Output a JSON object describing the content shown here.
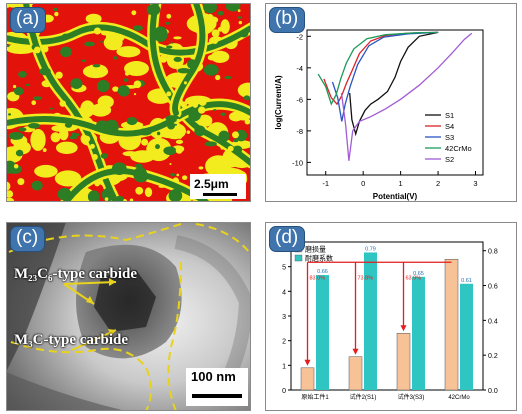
{
  "panels": {
    "a": {
      "label": "(a)",
      "scale_bar": "2.5μm"
    },
    "b": {
      "label": "(b)"
    },
    "c": {
      "label": "(c)",
      "scale_bar": "100 nm",
      "carbide_1": "M₂₃C₆-type carbide",
      "carbide_2": "M₃C-type carbide"
    },
    "d": {
      "label": "(d)"
    }
  },
  "colors": {
    "red": "#e3120b",
    "green": "#2d7d25",
    "yellow": "#f2ec1e",
    "tag_bg": "#3f74ad",
    "teal": "#2ec5c2",
    "peach": "#f6c296",
    "arrow": "#e31c1c"
  },
  "chart_data": [
    {
      "panel": "b",
      "type": "line",
      "xlabel": "Potential(V)",
      "ylabel": "log(Current/A)",
      "xlim": [
        -1.5,
        3.2
      ],
      "ylim": [
        -10.8,
        -1.6
      ],
      "xticks": [
        -1,
        0,
        1,
        2,
        3
      ],
      "yticks": [
        -2,
        -4,
        -6,
        -8,
        -10
      ],
      "legend_position": "right",
      "series": [
        {
          "name": "S1",
          "color": "#111111",
          "points": [
            [
              -0.36,
              -5.6
            ],
            [
              -0.3,
              -7.3
            ],
            [
              -0.2,
              -8.2
            ],
            [
              -0.1,
              -7.4
            ],
            [
              0.05,
              -6.7
            ],
            [
              0.2,
              -6.3
            ],
            [
              0.4,
              -6.0
            ],
            [
              0.65,
              -5.5
            ],
            [
              0.85,
              -4.6
            ],
            [
              1.0,
              -3.6
            ],
            [
              1.2,
              -2.7
            ],
            [
              1.5,
              -2.0
            ],
            [
              2.0,
              -1.75
            ]
          ]
        },
        {
          "name": "S4",
          "color": "#d9222a",
          "points": [
            [
              -1.05,
              -4.7
            ],
            [
              -0.85,
              -5.9
            ],
            [
              -0.7,
              -6.3
            ],
            [
              -0.58,
              -5.8
            ],
            [
              -0.45,
              -5.0
            ],
            [
              -0.3,
              -4.2
            ],
            [
              -0.1,
              -3.1
            ],
            [
              0.2,
              -2.3
            ],
            [
              0.6,
              -1.95
            ],
            [
              1.2,
              -1.8
            ],
            [
              2.0,
              -1.75
            ]
          ]
        },
        {
          "name": "S3",
          "color": "#2a54c4",
          "points": [
            [
              -0.82,
              -4.9
            ],
            [
              -0.68,
              -5.9
            ],
            [
              -0.57,
              -7.4
            ],
            [
              -0.48,
              -6.3
            ],
            [
              -0.35,
              -5.2
            ],
            [
              -0.15,
              -3.8
            ],
            [
              0.15,
              -2.6
            ],
            [
              0.55,
              -2.05
            ],
            [
              1.2,
              -1.85
            ],
            [
              2.0,
              -1.75
            ]
          ]
        },
        {
          "name": "42CrMo",
          "color": "#1c9a5a",
          "points": [
            [
              -1.2,
              -4.4
            ],
            [
              -1.0,
              -5.2
            ],
            [
              -0.85,
              -6.3
            ],
            [
              -0.72,
              -5.7
            ],
            [
              -0.6,
              -4.7
            ],
            [
              -0.45,
              -3.7
            ],
            [
              -0.25,
              -2.8
            ],
            [
              0.1,
              -2.15
            ],
            [
              0.6,
              -1.9
            ],
            [
              1.4,
              -1.78
            ],
            [
              2.0,
              -1.75
            ]
          ]
        },
        {
          "name": "S2",
          "color": "#a25cd6",
          "points": [
            [
              -0.58,
              -5.6
            ],
            [
              -0.47,
              -7.6
            ],
            [
              -0.38,
              -9.9
            ],
            [
              -0.28,
              -8.0
            ],
            [
              -0.1,
              -7.4
            ],
            [
              0.2,
              -7.1
            ],
            [
              0.6,
              -6.6
            ],
            [
              1.0,
              -6.0
            ],
            [
              1.5,
              -5.1
            ],
            [
              2.0,
              -4.0
            ],
            [
              2.4,
              -3.0
            ],
            [
              2.7,
              -2.2
            ],
            [
              2.9,
              -1.8
            ]
          ]
        }
      ]
    },
    {
      "panel": "d",
      "type": "bar",
      "categories": [
        "原始工件1",
        "试件2(S1)",
        "试件3(S3)",
        "42CrMo"
      ],
      "ylabel": "",
      "ylabel_right": "",
      "ylim": [
        0,
        6
      ],
      "ylim_right": [
        0,
        0.85
      ],
      "yticks": [
        0,
        1,
        2,
        3,
        4,
        5
      ],
      "yticks_right": [
        "0.0",
        "0.2",
        "0.4",
        "0.6",
        "0.8"
      ],
      "series": [
        {
          "name": "磨损量",
          "axis": "left",
          "color": "#f6c296",
          "values": [
            0.9,
            1.35,
            2.3,
            5.3
          ]
        },
        {
          "name": "耐磨系数",
          "axis": "right",
          "color": "#2ec5c2",
          "values": [
            0.66,
            0.79,
            0.65,
            0.61
          ],
          "labels": [
            "0.66",
            "0.79",
            "0.65",
            "0.61"
          ]
        }
      ],
      "legend": [
        "磨损量",
        "耐磨系数"
      ],
      "arrow_labels": [
        "83.0%",
        "73.8%",
        "63.9%"
      ]
    }
  ]
}
